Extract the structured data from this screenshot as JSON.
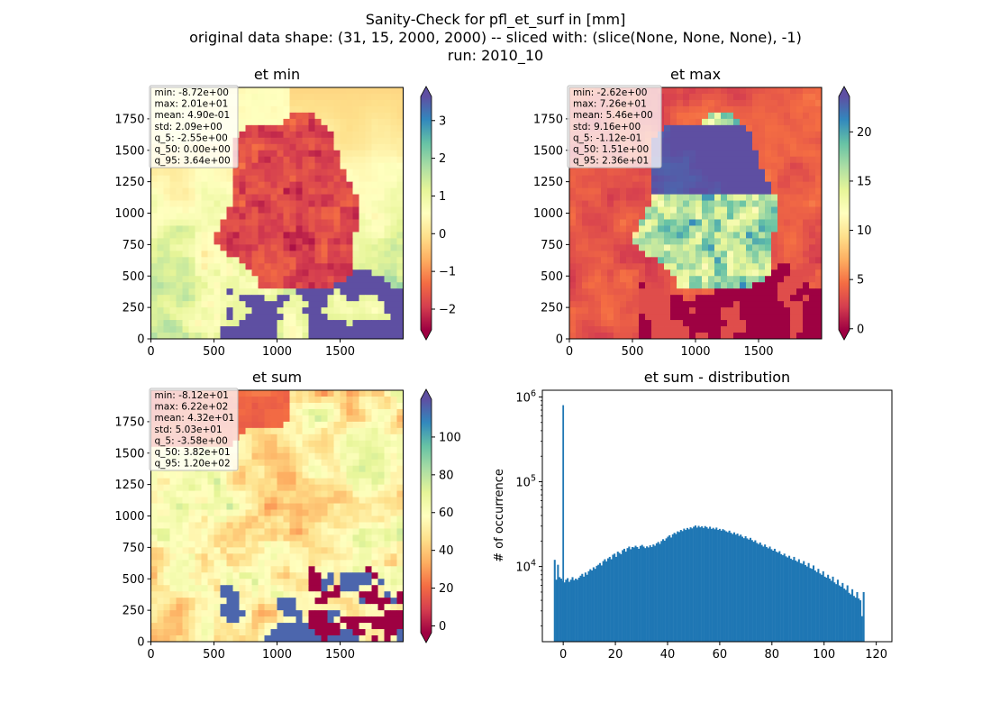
{
  "suptitle": {
    "line1": "Sanity-Check for pfl_et_surf in [mm]",
    "line2": "original data shape: (31, 15, 2000, 2000) -- sliced with: (slice(None, None, None), -1)",
    "line3": "run: 2010_10"
  },
  "colormap": [
    "#9e0142",
    "#d53e4f",
    "#f46d43",
    "#fdae61",
    "#fee08b",
    "#ffffbf",
    "#e6f598",
    "#abdda4",
    "#66c2a5",
    "#3288bd",
    "#5e4fa2"
  ],
  "hist_color": "#1f77b4",
  "chart_data": [
    {
      "type": "heatmap",
      "title": "et min",
      "x_ticks": [
        0,
        500,
        1000,
        1500
      ],
      "y_ticks": [
        0,
        250,
        500,
        750,
        1000,
        1250,
        1500,
        1750
      ],
      "xlim": [
        0,
        2000
      ],
      "ylim": [
        0,
        2000
      ],
      "colorbar": {
        "min": -2.55,
        "max": 3.64,
        "ticks": [
          -2,
          -1,
          0,
          1,
          2,
          3
        ],
        "tick_labels": [
          "−2",
          "−1",
          "0",
          "1",
          "2",
          "3"
        ],
        "extend": "both"
      },
      "stats": [
        "min: -8.72e+00",
        "max: 2.01e+01",
        "mean: 4.90e-01",
        "std: 2.09e+00",
        "q_5: -2.55e+00",
        "q_50: 0.00e+00",
        "q_95: 3.64e+00"
      ]
    },
    {
      "type": "heatmap",
      "title": "et max",
      "x_ticks": [
        0,
        500,
        1000,
        1500
      ],
      "y_ticks": [
        0,
        250,
        500,
        750,
        1000,
        1250,
        1500,
        1750
      ],
      "xlim": [
        0,
        2000
      ],
      "ylim": [
        0,
        2000
      ],
      "colorbar": {
        "min": -0.112,
        "max": 23.6,
        "ticks": [
          0,
          5,
          10,
          15,
          20
        ],
        "tick_labels": [
          "0",
          "5",
          "10",
          "15",
          "20"
        ],
        "extend": "both"
      },
      "stats": [
        "min: -2.62e+00",
        "max: 7.26e+01",
        "mean: 5.46e+00",
        "std: 9.16e+00",
        "q_5: -1.12e-01",
        "q_50: 1.51e+00",
        "q_95: 2.36e+01"
      ]
    },
    {
      "type": "heatmap",
      "title": "et sum",
      "x_ticks": [
        0,
        500,
        1000,
        1500
      ],
      "y_ticks": [
        0,
        250,
        500,
        750,
        1000,
        1250,
        1500,
        1750
      ],
      "xlim": [
        0,
        2000
      ],
      "ylim": [
        0,
        2000
      ],
      "colorbar": {
        "min": -3.58,
        "max": 120,
        "ticks": [
          0,
          20,
          40,
          60,
          80,
          100
        ],
        "tick_labels": [
          "0",
          "20",
          "40",
          "60",
          "80",
          "100"
        ],
        "extend": "both"
      },
      "stats": [
        "min: -8.12e+01",
        "max: 6.22e+02",
        "mean: 4.32e+01",
        "std: 5.03e+01",
        "q_5: -3.58e+00",
        "q_50: 3.82e+01",
        "q_95: 1.20e+02"
      ]
    },
    {
      "type": "bar",
      "title": "et sum - distribution",
      "ylabel": "# of occurrence",
      "xlabel": "",
      "y_scale": "log",
      "xlim": [
        -8,
        126
      ],
      "ylim": [
        1300,
        1200000
      ],
      "x_ticks": [
        0,
        20,
        40,
        60,
        80,
        100,
        120
      ],
      "y_ticks": [
        {
          "value": 10000,
          "base": "10",
          "exp": "4"
        },
        {
          "value": 100000,
          "base": "10",
          "exp": "5"
        },
        {
          "value": 1000000,
          "base": "10",
          "exp": "6"
        }
      ],
      "bin_start": -3.6,
      "bin_width": 0.62,
      "spike": {
        "x": 0,
        "value": 800000
      },
      "values": [
        12000,
        7000,
        10500,
        7500,
        7200,
        6800,
        6500,
        7000,
        7300,
        6600,
        7000,
        7500,
        6900,
        7200,
        7000,
        7400,
        7800,
        8200,
        7600,
        8500,
        8000,
        8800,
        9300,
        9000,
        9800,
        9400,
        10200,
        10500,
        11000,
        10300,
        11600,
        12200,
        11500,
        12500,
        13000,
        12200,
        13800,
        14200,
        13000,
        15000,
        14500,
        14000,
        15600,
        16200,
        15000,
        16500,
        17200,
        16000,
        17000,
        16800,
        17600,
        17000,
        16200,
        17500,
        18000,
        17200,
        16500,
        17300,
        16800,
        17800,
        17000,
        18200,
        17600,
        18800,
        19500,
        18500,
        20000,
        21000,
        20200,
        21500,
        22500,
        23400,
        22000,
        24000,
        25000,
        24200,
        26000,
        25500,
        27000,
        26200,
        28000,
        27000,
        28500,
        27500,
        29000,
        28200,
        29500,
        30500,
        28800,
        30200,
        29000,
        29800,
        28500,
        30000,
        29200,
        28000,
        29500,
        27800,
        28600,
        27500,
        28800,
        27000,
        27800,
        26500,
        27600,
        26800,
        26000,
        25400,
        26500,
        25000,
        24200,
        25300,
        23800,
        24500,
        23000,
        23800,
        22500,
        21600,
        22800,
        21500,
        20800,
        21800,
        20500,
        19600,
        20400,
        19000,
        18400,
        19200,
        18000,
        17200,
        18200,
        17000,
        16400,
        17200,
        16000,
        15400,
        16200,
        15000,
        14600,
        15200,
        14000,
        13600,
        14200,
        13200,
        12800,
        13400,
        12400,
        12000,
        13000,
        11800,
        11400,
        12200,
        11000,
        10800,
        11600,
        10400,
        10000,
        11000,
        9600,
        9400,
        10300,
        9000,
        8600,
        9400,
        8300,
        8000,
        8800,
        7600,
        7400,
        8000,
        7200,
        6800,
        7600,
        6500,
        6200,
        7000,
        6000,
        5800,
        6400,
        5500,
        5300,
        6000,
        4900,
        4700,
        5400,
        4500,
        4300,
        5000,
        4200,
        4000,
        2600,
        5000
      ]
    }
  ]
}
